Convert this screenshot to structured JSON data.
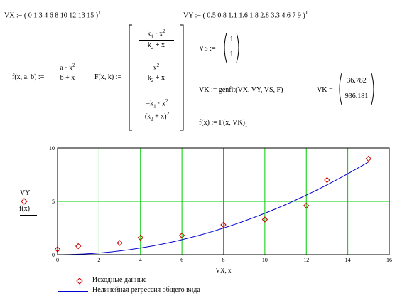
{
  "formulas": {
    "vx_def": "VX := ( 0   1   3   4   6   8   10   12   13   15 )",
    "vy_def": "VY := ( 0.5   0.8   1.1   1.6   1.8   2.8   3.3   4.6   7   9 )",
    "transpose": "T",
    "f_lhs": "f(x, a, b) :=",
    "f_num": "a · x",
    "f_den": "b + x",
    "F_lhs": "F(x, k) :=",
    "F_r1_num": "k",
    "F_r1_num2": "· x",
    "F_r1_den": "k",
    "F_r1_den2": " + x",
    "F_r2_num": "x",
    "F_r2_den": "k",
    "F_r2_den2": " + x",
    "F_r3_num": "−k",
    "F_r3_num2": " · x",
    "F_r3_den": "(k",
    "F_r3_den2": " + x)",
    "sq": "2",
    "idx1": "1",
    "idx2": "2",
    "vs_lhs": "VS :=",
    "vs_values": [
      "1",
      "1"
    ],
    "vk_def": "VK := genfit(VX, VY, VS, F)",
    "vk_lhs": "VK =",
    "vk_values": [
      "36.782",
      "936.181"
    ],
    "fx_def": "f(x) := F(x, VK)",
    "fx_sub": "1"
  },
  "chart_data": {
    "type": "scatter",
    "xlabel": "VX, x",
    "ylabel_top": "VY",
    "ylabel_bottom": "f(x)",
    "xlim": [
      0,
      16
    ],
    "ylim": [
      0,
      10
    ],
    "x_ticks": [
      0,
      2,
      4,
      6,
      8,
      10,
      12,
      14,
      16
    ],
    "y_ticks": [
      0,
      5,
      10
    ],
    "grid": true,
    "grid_color": "#00cc00",
    "series": [
      {
        "name": "Исходные данные",
        "kind": "points",
        "color": "#cc0000",
        "x": [
          0,
          1,
          3,
          4,
          6,
          8,
          10,
          12,
          13,
          15
        ],
        "y": [
          0.5,
          0.8,
          1.1,
          1.6,
          1.8,
          2.8,
          3.3,
          4.6,
          7,
          9
        ]
      },
      {
        "name": "Нелинейная регрессия общего вида",
        "kind": "line",
        "color": "#0000cc",
        "a": 36.782,
        "b": 936.181,
        "x_range": [
          0,
          15
        ]
      }
    ]
  }
}
